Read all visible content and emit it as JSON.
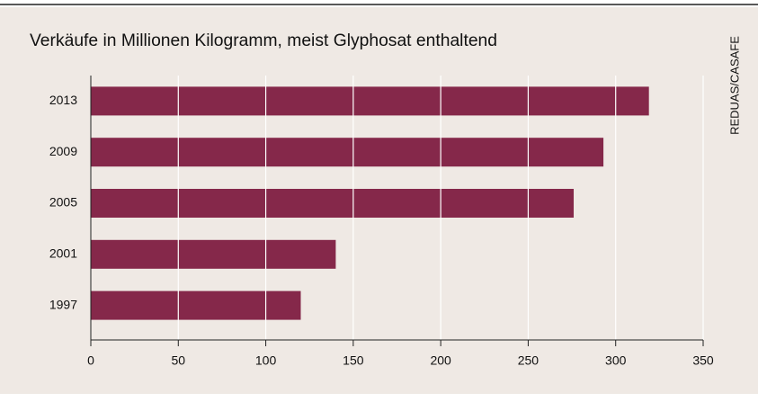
{
  "chart_data": {
    "type": "barh",
    "title": "Verkäufe in Millionen Kilogramm, meist Glyphosat enthaltend",
    "source": "REDUAS/CASAFE",
    "categories": [
      "2013",
      "2009",
      "2005",
      "2001",
      "1997"
    ],
    "values": [
      319,
      293,
      276,
      140,
      120
    ],
    "color": "#85284a",
    "xlim": [
      0,
      350
    ],
    "xticks": [
      0,
      50,
      100,
      150,
      200,
      250,
      300,
      350
    ],
    "grid": true
  }
}
